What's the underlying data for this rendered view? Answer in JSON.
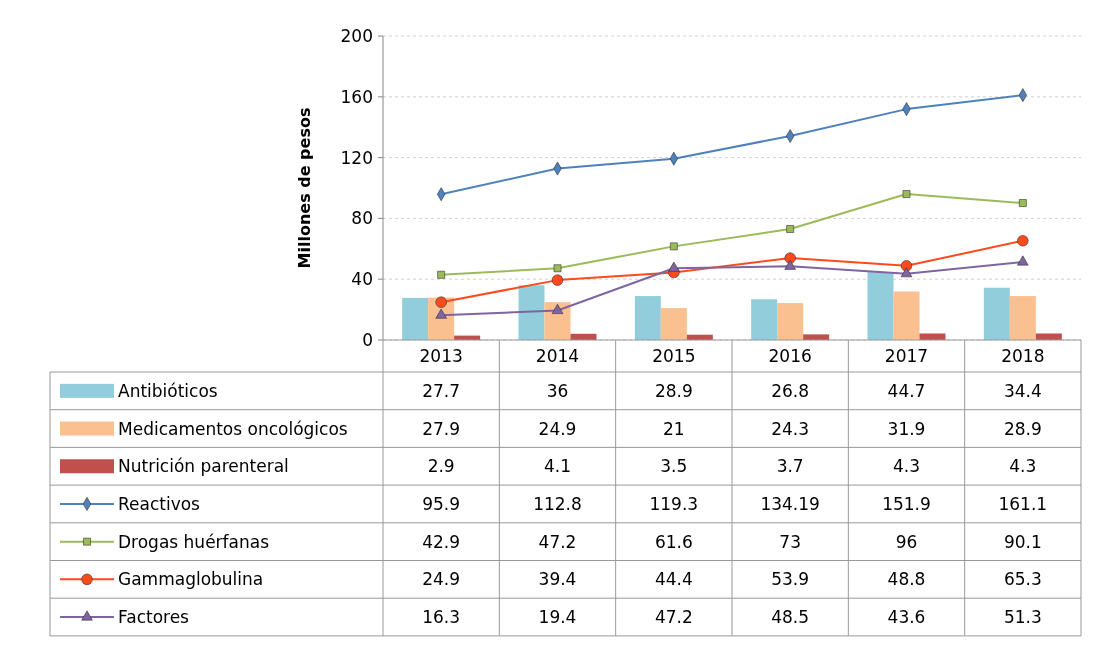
{
  "chart_data": {
    "type": "bar",
    "ylabel": "Millones de pesos",
    "categories": [
      "2013",
      "2014",
      "2015",
      "2016",
      "2017",
      "2018"
    ],
    "ylim": [
      0,
      200
    ],
    "yticks": [
      0,
      40,
      80,
      120,
      160,
      200
    ],
    "grid": "y",
    "legend": "bottom",
    "data_labels": true,
    "series": [
      {
        "name": "Antibióticos",
        "color": "#92cddc",
        "values": [
          27.7,
          36,
          28.9,
          26.8,
          44.7,
          34.4
        ]
      },
      {
        "name": "Medicamentos oncológicos",
        "color": "#fac090",
        "values": [
          27.9,
          24.9,
          21,
          24.3,
          31.9,
          28.9
        ]
      },
      {
        "name": "Nutrición parenteral",
        "color": "#c0504d",
        "values": [
          2.9,
          4.1,
          3.5,
          3.7,
          4.3,
          4.3
        ]
      },
      {
        "name": "Reactivos",
        "type": "line",
        "color": "#4f81bd",
        "marker": "diamond",
        "values": [
          95.9,
          112.8,
          119.3,
          134.19,
          151.9,
          161.1
        ]
      },
      {
        "name": "Drogas huérfanas",
        "type": "line",
        "color": "#9bbb59",
        "marker": "square",
        "values": [
          42.9,
          47.2,
          61.6,
          73,
          96,
          90.1
        ]
      },
      {
        "name": "Gammaglobulina",
        "type": "line",
        "color": "#ff4a1c",
        "marker": "circle",
        "values": [
          24.9,
          39.4,
          44.4,
          53.9,
          48.8,
          65.3
        ]
      },
      {
        "name": "Factores",
        "type": "line",
        "color": "#8064a2",
        "marker": "triangle",
        "values": [
          16.3,
          19.4,
          47.2,
          48.5,
          43.6,
          51.3
        ]
      }
    ]
  }
}
